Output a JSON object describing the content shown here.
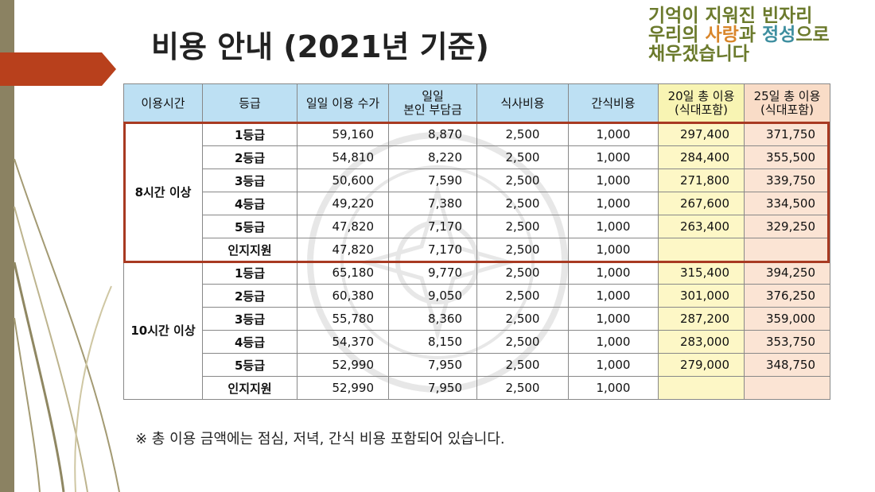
{
  "header": {
    "title": "비용 안내 (2021년 기준)",
    "tagline": {
      "line1": "기억이 지워진 빈자리",
      "line2_prefix": "우리의 ",
      "line2_love": "사랑",
      "line2_mid": "과 ",
      "line2_care": "정성",
      "line2_suffix": "으로",
      "line3": "채우겠습니다"
    }
  },
  "table": {
    "headers": {
      "time": "이용시간",
      "grade": "등급",
      "daily_fee": "일일 이용 수가",
      "self_pay_line1": "일일",
      "self_pay_line2": "본인 부담금",
      "meal": "식사비용",
      "snack": "간식비용",
      "total20_line1": "20일 총 이용",
      "total20_line2": "(식대포함)",
      "total25_line1": "25일 총 이용",
      "total25_line2": "(식대포함)"
    },
    "groups": [
      {
        "label": "8시간 이상",
        "rows": [
          {
            "grade": "1등급",
            "daily": "59,160",
            "self": "8,870",
            "meal": "2,500",
            "snack": "1,000",
            "t20": "297,400",
            "t25": "371,750"
          },
          {
            "grade": "2등급",
            "daily": "54,810",
            "self": "8,220",
            "meal": "2,500",
            "snack": "1,000",
            "t20": "284,400",
            "t25": "355,500"
          },
          {
            "grade": "3등급",
            "daily": "50,600",
            "self": "7,590",
            "meal": "2,500",
            "snack": "1,000",
            "t20": "271,800",
            "t25": "339,750"
          },
          {
            "grade": "4등급",
            "daily": "49,220",
            "self": "7,380",
            "meal": "2,500",
            "snack": "1,000",
            "t20": "267,600",
            "t25": "334,500"
          },
          {
            "grade": "5등급",
            "daily": "47,820",
            "self": "7,170",
            "meal": "2,500",
            "snack": "1,000",
            "t20": "263,400",
            "t25": "329,250"
          },
          {
            "grade": "인지지원",
            "daily": "47,820",
            "self": "7,170",
            "meal": "2,500",
            "snack": "1,000",
            "t20": "",
            "t25": ""
          }
        ]
      },
      {
        "label": "10시간 이상",
        "rows": [
          {
            "grade": "1등급",
            "daily": "65,180",
            "self": "9,770",
            "meal": "2,500",
            "snack": "1,000",
            "t20": "315,400",
            "t25": "394,250"
          },
          {
            "grade": "2등급",
            "daily": "60,380",
            "self": "9,050",
            "meal": "2,500",
            "snack": "1,000",
            "t20": "301,000",
            "t25": "376,250"
          },
          {
            "grade": "3등급",
            "daily": "55,780",
            "self": "8,360",
            "meal": "2,500",
            "snack": "1,000",
            "t20": "287,200",
            "t25": "359,000"
          },
          {
            "grade": "4등급",
            "daily": "54,370",
            "self": "8,150",
            "meal": "2,500",
            "snack": "1,000",
            "t20": "283,000",
            "t25": "353,750"
          },
          {
            "grade": "5등급",
            "daily": "52,990",
            "self": "7,950",
            "meal": "2,500",
            "snack": "1,000",
            "t20": "279,000",
            "t25": "348,750"
          },
          {
            "grade": "인지지원",
            "daily": "52,990",
            "self": "7,950",
            "meal": "2,500",
            "snack": "1,000",
            "t20": "",
            "t25": ""
          }
        ]
      }
    ]
  },
  "note": "※ 총 이용 금액에는 점심, 저녁, 간식 비용 포함되어 있습니다.",
  "colors": {
    "header_blue": "#bde0f3",
    "total20_yellow": "#fdf7c6",
    "total25_peach": "#fbe4d4",
    "highlight_red": "#a83a22",
    "arrow_red": "#b8401c",
    "olive": "#8b8262"
  }
}
